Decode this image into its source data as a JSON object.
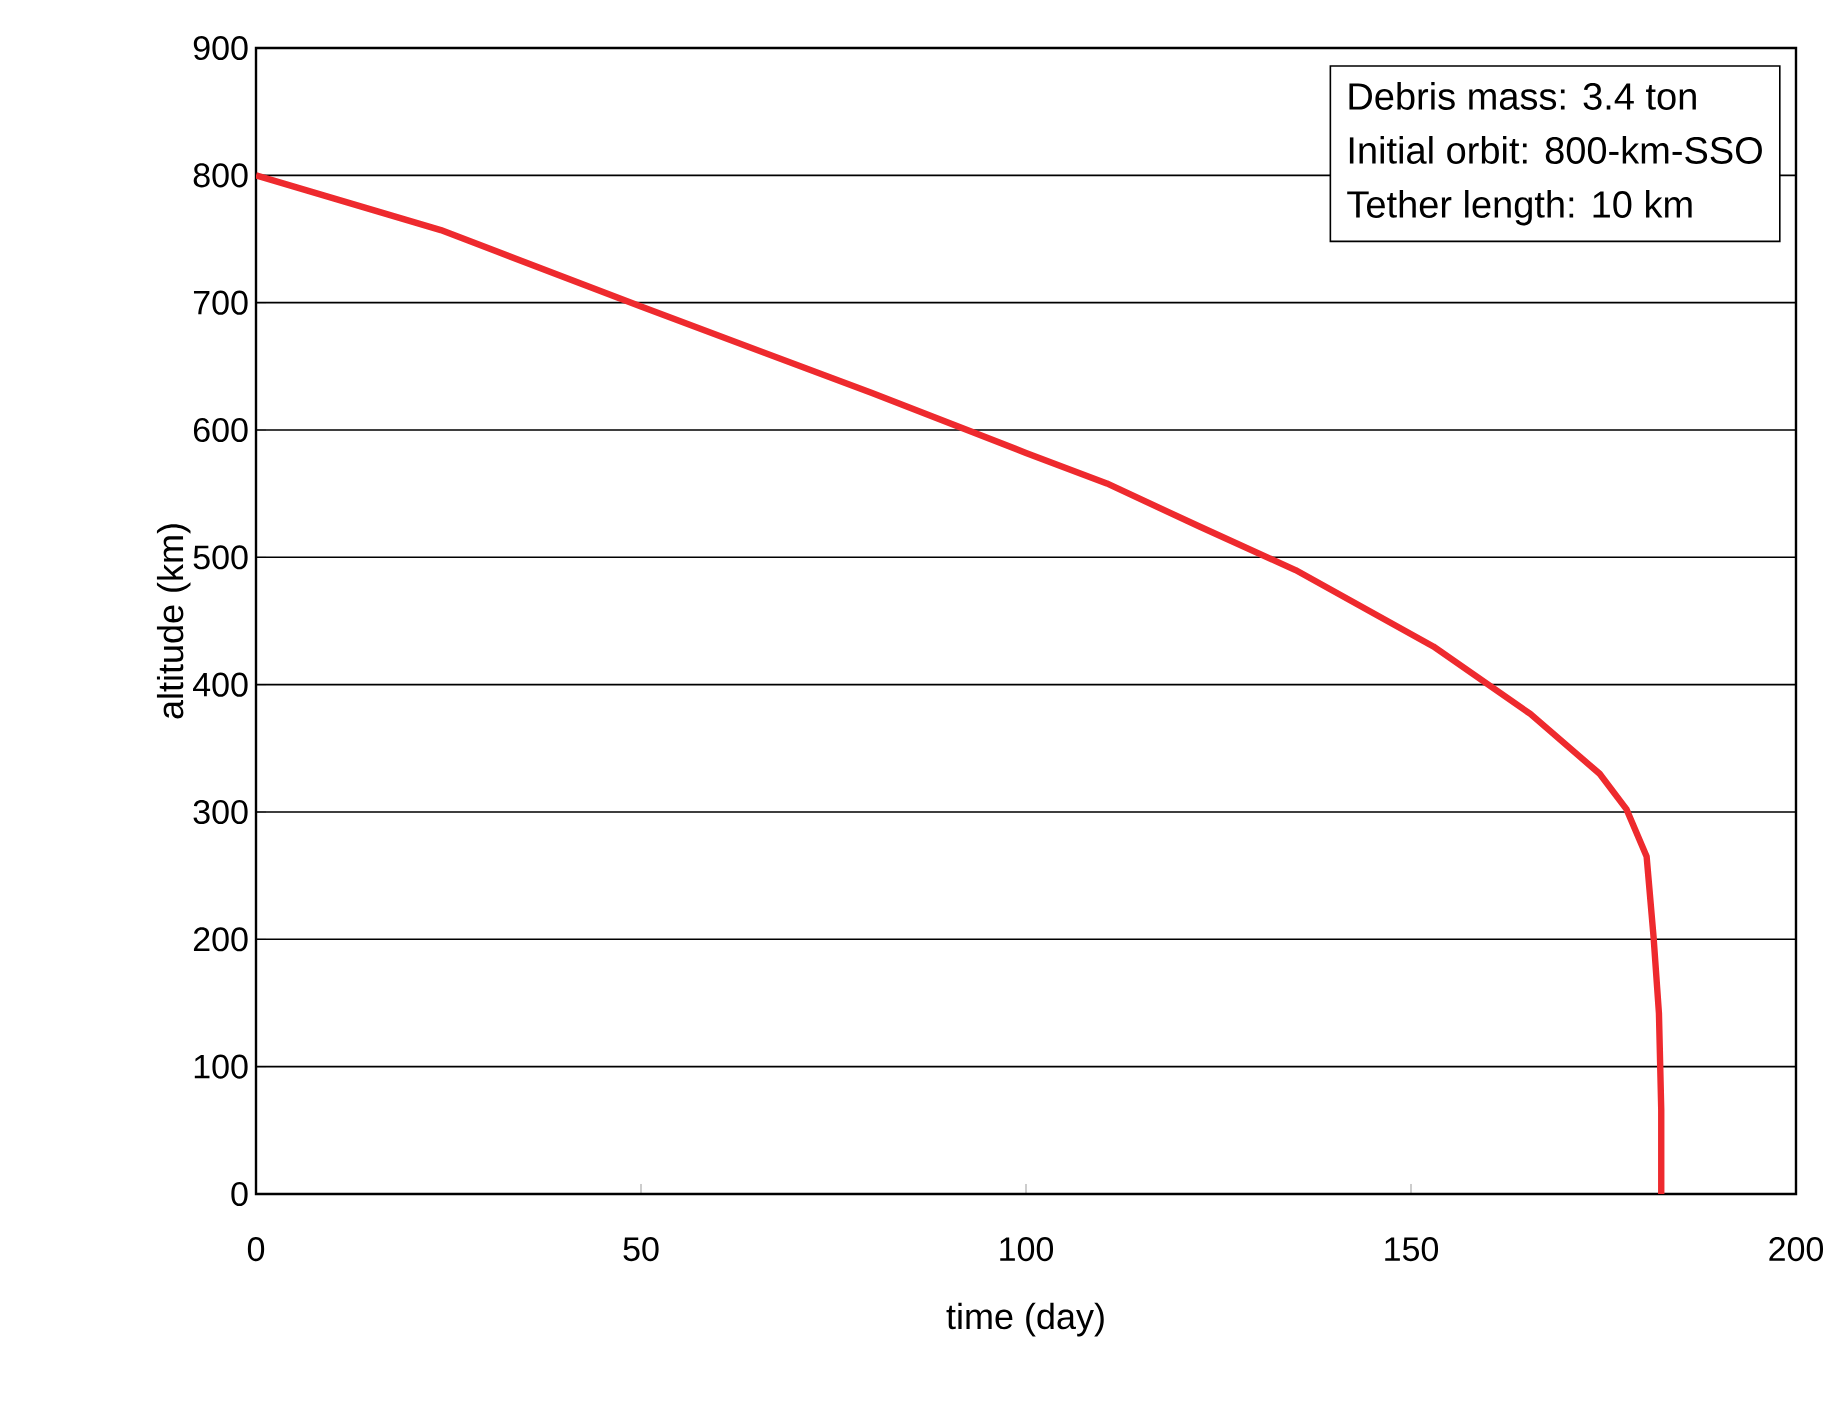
{
  "chart_data": {
    "type": "line",
    "xlabel": "time (day)",
    "ylabel": "altitude (km)",
    "annotations": [
      "Debris mass: 3.4 ton",
      "Initial orbit: 800-km-SSO",
      "Tether length: 10 km"
    ],
    "xlim": [
      0,
      200
    ],
    "ylim": [
      0,
      900
    ],
    "xticks": [
      0,
      50,
      100,
      150,
      200
    ],
    "yticks": [
      0,
      100,
      200,
      300,
      400,
      500,
      600,
      700,
      800,
      900
    ],
    "grid": "y",
    "line_style": "solid",
    "series": [
      {
        "color": "#ee2a2e",
        "x": [
          0,
          24,
          50,
          80,
          100,
          110.5,
          122.6,
          135,
          152.9,
          165.5,
          174.5,
          178,
          180.6,
          181.5,
          182.2,
          182.5,
          182.5
        ],
        "values": [
          800,
          757,
          697,
          629,
          582,
          558,
          524,
          490,
          430,
          377,
          330,
          302,
          265,
          202,
          142,
          66,
          0
        ]
      }
    ]
  }
}
